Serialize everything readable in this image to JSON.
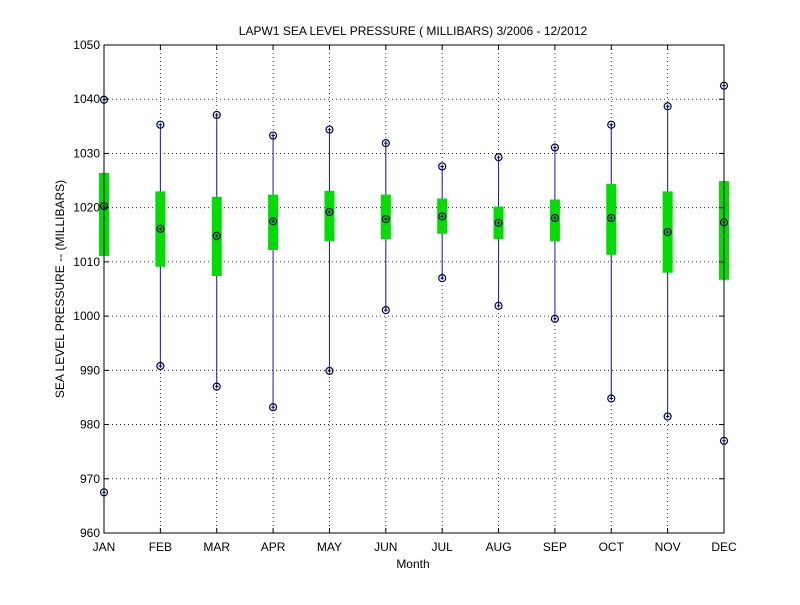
{
  "chart_data": {
    "type": "box",
    "title": "LAPW1  SEA LEVEL PRESSURE ( MILLIBARS) 3/2006 - 12/2012",
    "xlabel": "Month",
    "ylabel": "SEA LEVEL PRESSURE -- (MILLIBARS)",
    "ylim": [
      960,
      1050
    ],
    "yticks": [
      960,
      970,
      980,
      990,
      1000,
      1010,
      1020,
      1030,
      1040,
      1050
    ],
    "grid": true,
    "categories": [
      "JAN",
      "FEB",
      "MAR",
      "APR",
      "MAY",
      "JUN",
      "JUL",
      "AUG",
      "SEP",
      "OCT",
      "NOV",
      "DEC"
    ],
    "series": [
      {
        "max": [
          1039.9,
          1035.3,
          1037.1,
          1033.3,
          1034.4,
          1031.9,
          1027.6,
          1029.3,
          1031.1,
          1035.3,
          1038.7,
          1042.5
        ],
        "q_high": [
          1026.4,
          1023.0,
          1022.0,
          1022.4,
          1023.1,
          1022.4,
          1021.7,
          1020.2,
          1021.5,
          1024.4,
          1023.0,
          1024.9
        ],
        "mean": [
          1020.3,
          1016.1,
          1014.8,
          1017.5,
          1019.2,
          1017.9,
          1018.4,
          1017.2,
          1018.1,
          1018.1,
          1015.5,
          1017.3
        ],
        "q_low": [
          1011.1,
          1009.1,
          1007.4,
          1012.2,
          1013.8,
          1014.2,
          1015.2,
          1014.2,
          1013.8,
          1011.3,
          1008.0,
          1006.7
        ],
        "min": [
          967.5,
          990.8,
          987.0,
          983.2,
          989.9,
          1001.1,
          1007.0,
          1001.9,
          999.5,
          984.8,
          981.5,
          977.0
        ]
      }
    ],
    "colors": {
      "whisker": "#1a1aa0",
      "box": "#00dd00",
      "marker": "#000050",
      "grid": "#000000"
    }
  }
}
